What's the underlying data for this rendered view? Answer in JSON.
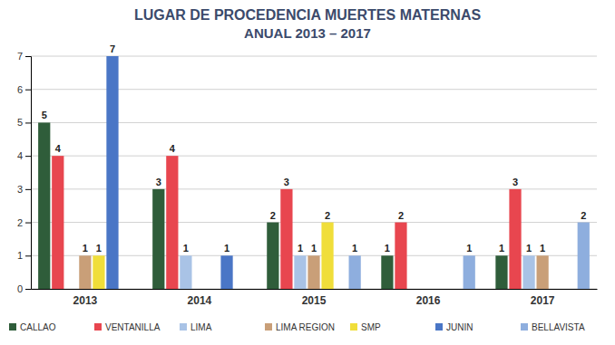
{
  "chart_data": {
    "type": "bar",
    "title": "LUGAR DE PROCEDENCIA MUERTES MATERNAS",
    "subtitle": "ANUAL 2013 – 2017",
    "categories": [
      "2013",
      "2014",
      "2015",
      "2016",
      "2017"
    ],
    "series": [
      {
        "name": "CALLAO",
        "color": "#2f5d3a",
        "values": [
          5,
          3,
          2,
          1,
          1
        ]
      },
      {
        "name": "VENTANILLA",
        "color": "#e8464f",
        "values": [
          4,
          4,
          3,
          2,
          3
        ]
      },
      {
        "name": "LIMA",
        "color": "#a9c3e6",
        "values": [
          null,
          1,
          1,
          null,
          1
        ]
      },
      {
        "name": "LIMA REGION",
        "color": "#c99f78",
        "values": [
          1,
          null,
          1,
          null,
          1
        ]
      },
      {
        "name": "SMP",
        "color": "#f0de3a",
        "values": [
          1,
          null,
          2,
          null,
          null
        ]
      },
      {
        "name": "JUNIN",
        "color": "#4a76c6",
        "values": [
          7,
          1,
          null,
          null,
          null
        ]
      },
      {
        "name": "BELLAVISTA",
        "color": "#8eaede",
        "values": [
          null,
          null,
          1,
          1,
          2
        ]
      }
    ],
    "ylim": [
      0,
      7
    ],
    "yticks": [
      0,
      1,
      2,
      3,
      4,
      5,
      6,
      7
    ],
    "grid": true,
    "data_labels": true,
    "legend": "bottom"
  }
}
